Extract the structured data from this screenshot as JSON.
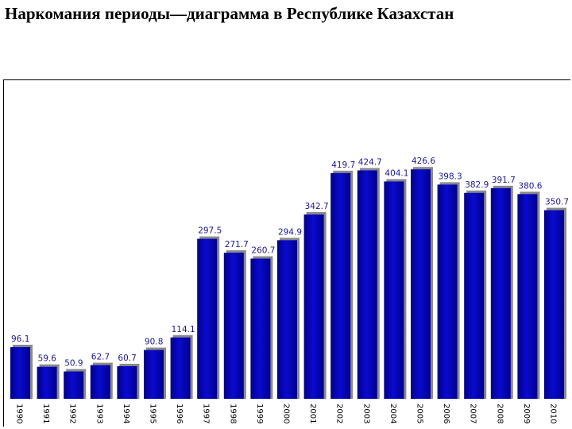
{
  "page": {
    "title": "Наркомания периоды—диаграмма  в Республике Казахстан"
  },
  "colors": {
    "bar": "#0a0ad0",
    "bar_dark": "#00008a",
    "bar_shadow": "#8a8a8a",
    "label": "#1a1a8c"
  },
  "chart_data": {
    "type": "bar",
    "title": "Наркомания периоды—диаграмма  в Республике Казахстан",
    "xlabel": "",
    "ylabel": "",
    "grid": false,
    "legend": "none",
    "ylim": [
      0,
      450
    ],
    "categories": [
      "1990",
      "1991",
      "1992",
      "1993",
      "1994",
      "1995",
      "1996",
      "1997",
      "1998",
      "1999",
      "2000",
      "2001",
      "2002",
      "2003",
      "2004",
      "2005",
      "2006",
      "2007",
      "2008",
      "2009",
      "2010"
    ],
    "value_labels": [
      "96.1",
      "59.6",
      "50.9",
      "62.7",
      "60.7",
      "90.8",
      "114.1",
      "297.5",
      "271.7",
      "260.7",
      "294.9",
      "342.7",
      "419.7",
      "424.7",
      "404.1",
      "426.6",
      "398.3",
      "382.9",
      "391.7",
      "380.6",
      "350.7"
    ],
    "values": [
      96.1,
      59.6,
      50.9,
      62.7,
      60.7,
      90.8,
      114.1,
      297.5,
      271.7,
      260.7,
      294.9,
      342.7,
      419.7,
      424.7,
      404.1,
      426.6,
      398.3,
      382.9,
      391.7,
      380.6,
      350.7
    ]
  }
}
